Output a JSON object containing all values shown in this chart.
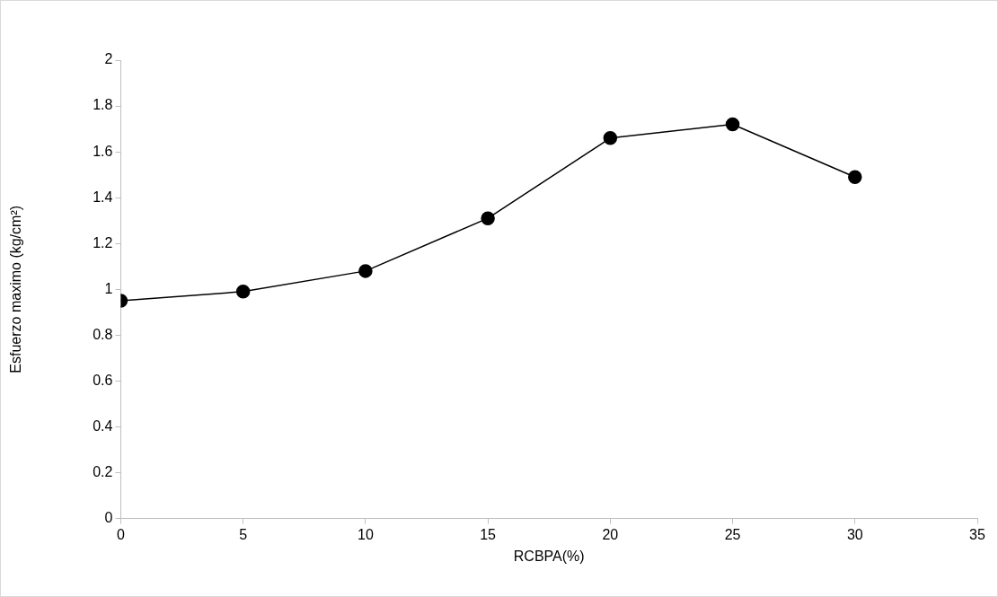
{
  "chart_data": {
    "type": "line",
    "xlabel": "RCBPA(%)",
    "ylabel": "Esfuerzo maximo (kg/cm²)",
    "x": [
      0,
      5,
      10,
      15,
      20,
      25,
      30
    ],
    "series": [
      {
        "color": "#000000",
        "values": [
          0.95,
          0.99,
          1.08,
          1.31,
          1.66,
          1.72,
          1.49
        ]
      }
    ],
    "xlim": [
      0,
      35
    ],
    "xticks": [
      0,
      5,
      10,
      15,
      20,
      25,
      30,
      35
    ],
    "ylim": [
      0,
      2
    ],
    "yticks": [
      0,
      0.2,
      0.4,
      0.6,
      0.8,
      1,
      1.2,
      1.4,
      1.6,
      1.8,
      2
    ],
    "grid": false,
    "legend": false,
    "marker": "circle",
    "line_style": "solid"
  }
}
